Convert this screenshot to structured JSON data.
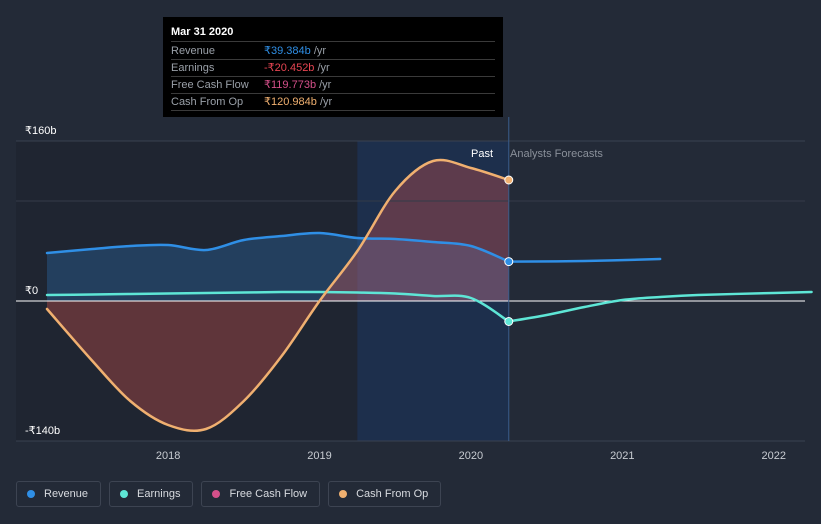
{
  "tooltip": {
    "date": "Mar 31 2020",
    "rows": [
      {
        "label": "Revenue",
        "value": "₹39.384b",
        "unit": " /yr",
        "color": "#2f8fe6"
      },
      {
        "label": "Earnings",
        "value": "-₹20.452b",
        "unit": " /yr",
        "color": "#e64552"
      },
      {
        "label": "Free Cash Flow",
        "value": "₹119.773b",
        "unit": " /yr",
        "color": "#d4508a"
      },
      {
        "label": "Cash From Op",
        "value": "₹120.984b",
        "unit": " /yr",
        "color": "#f0b070"
      }
    ]
  },
  "legend": [
    {
      "label": "Revenue",
      "color": "#2f8fe6"
    },
    {
      "label": "Earnings",
      "color": "#5ee6d6"
    },
    {
      "label": "Free Cash Flow",
      "color": "#d4508a"
    },
    {
      "label": "Cash From Op",
      "color": "#f0b070"
    }
  ],
  "chart_data": {
    "type": "line",
    "currency_unit": "₹ billions",
    "y_ticks": [
      {
        "value": 160,
        "label": "₹160b"
      },
      {
        "value": 0,
        "label": "₹0"
      },
      {
        "value": -140,
        "label": "-₹140b"
      }
    ],
    "x_ticks": [
      {
        "value": 2018,
        "label": "2018"
      },
      {
        "value": 2019,
        "label": "2019"
      },
      {
        "value": 2020,
        "label": "2020"
      },
      {
        "value": 2021,
        "label": "2021"
      },
      {
        "value": 2022,
        "label": "2022"
      }
    ],
    "xlim": [
      2017.0,
      2022.25
    ],
    "ylim": [
      -140,
      160
    ],
    "past_label": "Past",
    "forecast_label": "Analysts Forecasts",
    "highlight_range": [
      2019.25,
      2020.25
    ],
    "past_end": 2020.25,
    "series": [
      {
        "name": "Revenue",
        "color": "#2f8fe6",
        "fill": true,
        "x": [
          2017.2,
          2017.5,
          2017.75,
          2018.0,
          2018.25,
          2018.5,
          2018.75,
          2019.0,
          2019.25,
          2019.5,
          2019.75,
          2020.0,
          2020.25
        ],
        "y": [
          48,
          52,
          55,
          56,
          51,
          61,
          65,
          68,
          63,
          62,
          59,
          55,
          39.4
        ],
        "forecast_x": [
          2020.25,
          2020.75,
          2021.25
        ],
        "forecast_y": [
          39.4,
          40,
          42
        ]
      },
      {
        "name": "Earnings",
        "color": "#5ee6d6",
        "fill": false,
        "x": [
          2017.2,
          2017.5,
          2017.75,
          2018.0,
          2018.25,
          2018.5,
          2018.75,
          2019.0,
          2019.25,
          2019.5,
          2019.75,
          2020.0,
          2020.25
        ],
        "y": [
          6,
          6.5,
          7,
          7.5,
          8,
          8.5,
          9,
          9,
          8.5,
          7.5,
          5,
          3,
          -20.5
        ],
        "forecast_x": [
          2020.25,
          2020.5,
          2020.75,
          2021.0,
          2021.25,
          2021.5,
          2022.0,
          2022.25
        ],
        "forecast_y": [
          -20.5,
          -14,
          -6,
          1,
          4,
          6,
          8,
          9
        ]
      },
      {
        "name": "Cash From Op",
        "color": "#f0b070",
        "fill": true,
        "x": [
          2017.2,
          2017.5,
          2017.75,
          2018.0,
          2018.25,
          2018.5,
          2018.75,
          2019.0,
          2019.25,
          2019.5,
          2019.75,
          2020.0,
          2020.25
        ],
        "y": [
          -8,
          -60,
          -100,
          -124,
          -128,
          -100,
          -55,
          0,
          50,
          110,
          140,
          133,
          121
        ],
        "forecast_x": [],
        "forecast_y": []
      }
    ]
  }
}
